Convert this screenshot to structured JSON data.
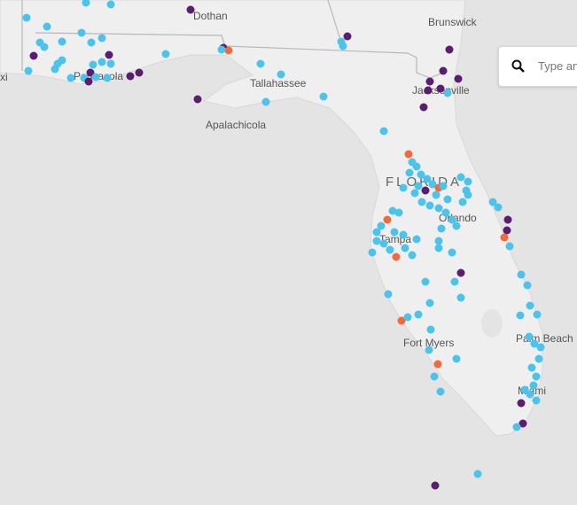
{
  "map": {
    "labels": {
      "dothan": "Dothan",
      "brunswick": "Brunswick",
      "biloxi": "xi",
      "pensacola": "Pensacola",
      "tallahassee": "Tallahassee",
      "jacksonville": "Jacksonville",
      "apalachicola": "Apalachicola",
      "florida": "FLORIDA",
      "orlando": "Orlando",
      "tampa": "Tampa",
      "fort_myers": "Fort Myers",
      "palm_beach": "Palm Beach",
      "miami": "Miami"
    }
  },
  "search": {
    "placeholder": "Type an"
  }
}
